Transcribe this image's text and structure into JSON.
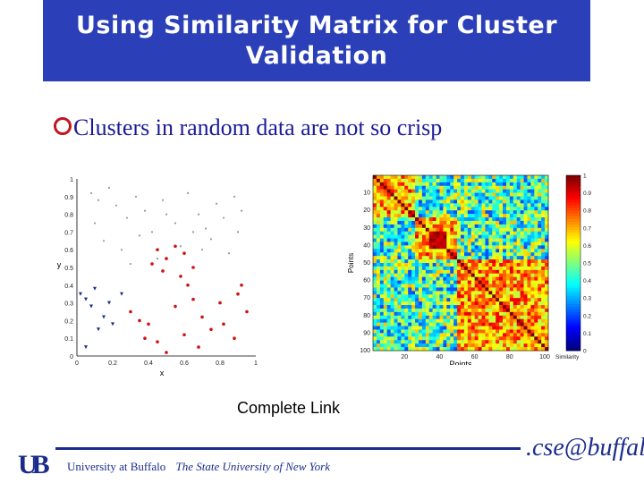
{
  "title": {
    "line1": "Using Similarity Matrix for Cluster",
    "line2": "Validation"
  },
  "bullet": "Clusters in random data are not so crisp",
  "caption": "Complete Link",
  "footer": {
    "institution": "University at Buffalo",
    "state": "The State University of New York",
    "ub_logo": "UB",
    "cse_logo": ".cse@buffalo"
  },
  "colors": {
    "title_bg": "#2b3fb8",
    "accent": "#1a2b8c"
  },
  "chart_data": [
    {
      "type": "scatter",
      "xlabel": "x",
      "ylabel": "y",
      "xlim": [
        0,
        1
      ],
      "ylim": [
        0,
        1
      ],
      "x_ticks": [
        "0",
        "0.2",
        "0.4",
        "0.6",
        "0.8",
        "1"
      ],
      "y_ticks": [
        "0",
        "0.1",
        "0.2",
        "0.3",
        "0.4",
        "0.5",
        "0.6",
        "0.7",
        "0.8",
        "0.9",
        "1"
      ],
      "series": [
        {
          "color": "#999999",
          "marker": "dot",
          "x": [
            0.08,
            0.12,
            0.18,
            0.22,
            0.28,
            0.33,
            0.38,
            0.42,
            0.48,
            0.55,
            0.62,
            0.68,
            0.72,
            0.78,
            0.82,
            0.88,
            0.92,
            0.15,
            0.25,
            0.35,
            0.45,
            0.58,
            0.65,
            0.75,
            0.85,
            0.1,
            0.3,
            0.5,
            0.7,
            0.9
          ],
          "y": [
            0.92,
            0.88,
            0.95,
            0.85,
            0.78,
            0.9,
            0.82,
            0.7,
            0.88,
            0.75,
            0.92,
            0.8,
            0.72,
            0.86,
            0.78,
            0.9,
            0.82,
            0.65,
            0.6,
            0.68,
            0.55,
            0.62,
            0.7,
            0.66,
            0.58,
            0.75,
            0.52,
            0.8,
            0.6,
            0.7
          ]
        },
        {
          "color": "#d01010",
          "marker": "dot",
          "x": [
            0.45,
            0.5,
            0.55,
            0.6,
            0.65,
            0.42,
            0.48,
            0.58,
            0.62,
            0.3,
            0.35,
            0.4,
            0.55,
            0.7,
            0.75,
            0.8,
            0.9,
            0.92,
            0.38,
            0.45,
            0.6,
            0.68,
            0.82,
            0.88,
            0.95,
            0.5,
            0.65
          ],
          "y": [
            0.6,
            0.55,
            0.62,
            0.58,
            0.5,
            0.52,
            0.48,
            0.45,
            0.4,
            0.25,
            0.2,
            0.18,
            0.28,
            0.22,
            0.15,
            0.3,
            0.35,
            0.4,
            0.1,
            0.08,
            0.12,
            0.05,
            0.18,
            0.1,
            0.25,
            0.02,
            0.32
          ]
        },
        {
          "color": "#1a2b8c",
          "marker": "triangle",
          "x": [
            0.02,
            0.05,
            0.08,
            0.1,
            0.15,
            0.2,
            0.25,
            0.12,
            0.18,
            0.05
          ],
          "y": [
            0.35,
            0.32,
            0.28,
            0.38,
            0.22,
            0.18,
            0.35,
            0.15,
            0.3,
            0.05
          ]
        }
      ]
    },
    {
      "type": "heatmap",
      "xlabel": "Points",
      "ylabel": "Points",
      "x_ticks": [
        "20",
        "40",
        "60",
        "80",
        "100"
      ],
      "y_ticks": [
        "10",
        "20",
        "30",
        "40",
        "50",
        "60",
        "70",
        "80",
        "90",
        "100"
      ],
      "colorbar_label": "Similarity",
      "colorbar_ticks": [
        "0",
        "0.1",
        "0.2",
        "0.3",
        "0.4",
        "0.5",
        "0.6",
        "0.7",
        "0.8",
        "0.9",
        "1"
      ],
      "zlim": [
        0,
        1
      ]
    }
  ]
}
